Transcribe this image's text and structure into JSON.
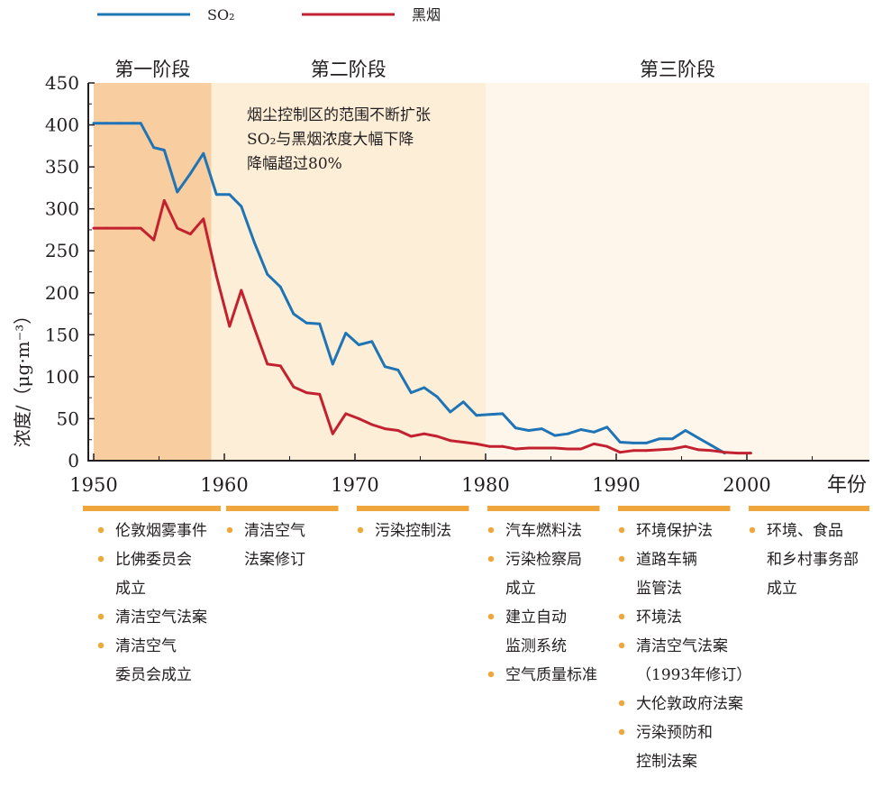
{
  "chart_data": {
    "type": "line",
    "title": "",
    "xlabel": "年份",
    "ylabel": "浓度/（μg·m⁻³）",
    "xlim": [
      1950,
      2010
    ],
    "ylim": [
      0,
      450
    ],
    "x_ticks": [
      1950,
      1960,
      1970,
      1980,
      1990,
      2000
    ],
    "y_ticks": [
      0,
      50,
      100,
      150,
      200,
      250,
      300,
      350,
      400,
      450
    ],
    "legend_position": "top-left",
    "grid": false,
    "colors": {
      "so2": "#1f74b6",
      "smoke": "#c2212f",
      "stage1": "#f8cda0",
      "stage2": "#fdeed7",
      "stage3": "#fef6ea",
      "policy": "#f0a63a",
      "bullet": "#f0a63a"
    },
    "series": [
      {
        "name": "SO₂",
        "key": "so2",
        "points": [
          [
            1950.0,
            402
          ],
          [
            1951.0,
            402
          ],
          [
            1952.0,
            402
          ],
          [
            1953.0,
            402
          ],
          [
            1953.6,
            402
          ],
          [
            1954.6,
            373
          ],
          [
            1955.4,
            370
          ],
          [
            1956.4,
            320
          ],
          [
            1957.4,
            342
          ],
          [
            1958.4,
            366
          ],
          [
            1959.4,
            317
          ],
          [
            1960.4,
            317
          ],
          [
            1961.3,
            303
          ],
          [
            1962.3,
            260
          ],
          [
            1963.3,
            222
          ],
          [
            1964.3,
            207
          ],
          [
            1965.3,
            175
          ],
          [
            1966.3,
            164
          ],
          [
            1967.3,
            163
          ],
          [
            1968.3,
            115
          ],
          [
            1969.3,
            152
          ],
          [
            1970.3,
            138
          ],
          [
            1971.3,
            142
          ],
          [
            1972.3,
            112
          ],
          [
            1973.3,
            108
          ],
          [
            1974.3,
            81
          ],
          [
            1975.3,
            87
          ],
          [
            1976.3,
            76
          ],
          [
            1977.3,
            58
          ],
          [
            1978.3,
            70
          ],
          [
            1979.3,
            54
          ],
          [
            1980.3,
            55
          ],
          [
            1981.3,
            56
          ],
          [
            1982.3,
            39
          ],
          [
            1983.3,
            36
          ],
          [
            1984.3,
            38
          ],
          [
            1985.3,
            30
          ],
          [
            1986.3,
            32
          ],
          [
            1987.3,
            37
          ],
          [
            1988.3,
            34
          ],
          [
            1989.3,
            40
          ],
          [
            1990.3,
            22
          ],
          [
            1991.3,
            21
          ],
          [
            1992.3,
            21
          ],
          [
            1993.3,
            26
          ],
          [
            1994.3,
            26
          ],
          [
            1995.3,
            36
          ],
          [
            1996.3,
            27
          ],
          [
            1997.3,
            18
          ],
          [
            1998.3,
            9
          ]
        ]
      },
      {
        "name": "黑烟",
        "key": "smoke",
        "points": [
          [
            1950.0,
            277
          ],
          [
            1951.0,
            277
          ],
          [
            1952.0,
            277
          ],
          [
            1953.0,
            277
          ],
          [
            1953.6,
            277
          ],
          [
            1954.6,
            263
          ],
          [
            1955.4,
            310
          ],
          [
            1956.4,
            277
          ],
          [
            1957.4,
            270
          ],
          [
            1958.4,
            288
          ],
          [
            1959.4,
            220
          ],
          [
            1960.4,
            160
          ],
          [
            1961.3,
            203
          ],
          [
            1962.3,
            158
          ],
          [
            1963.3,
            115
          ],
          [
            1964.3,
            113
          ],
          [
            1965.3,
            88
          ],
          [
            1966.3,
            81
          ],
          [
            1967.3,
            79
          ],
          [
            1968.3,
            32
          ],
          [
            1969.3,
            56
          ],
          [
            1970.3,
            50
          ],
          [
            1971.3,
            43
          ],
          [
            1972.3,
            38
          ],
          [
            1973.3,
            36
          ],
          [
            1974.3,
            29
          ],
          [
            1975.3,
            32
          ],
          [
            1976.3,
            29
          ],
          [
            1977.3,
            24
          ],
          [
            1978.3,
            22
          ],
          [
            1979.3,
            20
          ],
          [
            1980.3,
            17
          ],
          [
            1981.3,
            17
          ],
          [
            1982.3,
            14
          ],
          [
            1983.3,
            15
          ],
          [
            1984.3,
            15
          ],
          [
            1985.3,
            15
          ],
          [
            1986.3,
            14
          ],
          [
            1987.3,
            14
          ],
          [
            1988.3,
            20
          ],
          [
            1989.3,
            17
          ],
          [
            1990.3,
            10
          ],
          [
            1991.3,
            12
          ],
          [
            1992.3,
            12
          ],
          [
            1993.3,
            13
          ],
          [
            1994.3,
            14
          ],
          [
            1995.3,
            17
          ],
          [
            1996.3,
            13
          ],
          [
            1997.3,
            12
          ],
          [
            1998.3,
            10
          ],
          [
            1999.3,
            9
          ],
          [
            2000.3,
            9
          ]
        ]
      }
    ],
    "stages": [
      {
        "label": "第一阶段",
        "start": 1950,
        "end": 1959,
        "key": "stage1"
      },
      {
        "label": "第二阶段",
        "start": 1959,
        "end": 1980,
        "key": "stage2"
      },
      {
        "label": "第三阶段",
        "start": 1980,
        "end": 2010,
        "key": "stage3"
      }
    ],
    "annotation": [
      "烟尘控制区的范围不断扩张",
      "SO₂与黑烟浓度大幅下降",
      "降幅超过80%"
    ],
    "policy_periods": [
      {
        "start": 1950,
        "end": 1960,
        "items": [
          [
            "伦敦烟雾事件"
          ],
          [
            "比佛委员会",
            "成立"
          ],
          [
            "清洁空气法案"
          ],
          [
            "清洁空气",
            "委员会成立"
          ]
        ]
      },
      {
        "start": 1960,
        "end": 1969,
        "items": [
          [
            "清洁空气",
            "法案修订"
          ]
        ]
      },
      {
        "start": 1970,
        "end": 1979,
        "items": [
          [
            "污染控制法"
          ]
        ]
      },
      {
        "start": 1980,
        "end": 1989,
        "items": [
          [
            "汽车燃料法"
          ],
          [
            "污染检察局",
            "成立"
          ],
          [
            "建立自动",
            "监测系统"
          ],
          [
            "空气质量标准"
          ]
        ]
      },
      {
        "start": 1990,
        "end": 1999,
        "items": [
          [
            "环境保护法"
          ],
          [
            "道路车辆",
            "监管法"
          ],
          [
            "环境法"
          ],
          [
            "清洁空气法案",
            "（1993年修订）"
          ],
          [
            "大伦敦政府法案"
          ],
          [
            "污染预防和",
            "控制法案"
          ]
        ]
      },
      {
        "start": 2000,
        "end": 2010,
        "items": [
          [
            "环境、食品",
            "和乡村事务部",
            "成立"
          ]
        ]
      }
    ]
  }
}
